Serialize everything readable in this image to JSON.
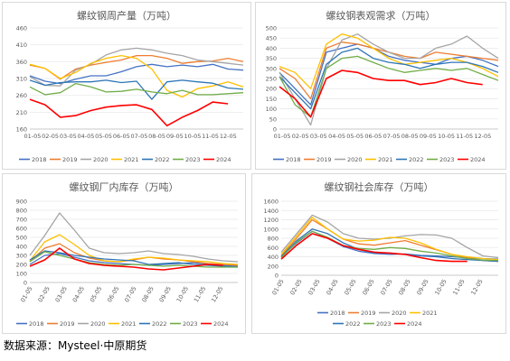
{
  "source_text": "数据来源：Mysteel·中原期货",
  "colors": {
    "2018": "#4472c4",
    "2019": "#ed7d31",
    "2020": "#a5a5a5",
    "2021": "#ffc000",
    "2022": "#2e75b6",
    "2023": "#70ad47",
    "2024": "#ff0000"
  },
  "chart_data": [
    {
      "type": "line",
      "title": "螺纹钢周产量（万吨）",
      "x_labels": [
        "01-05",
        "02-05",
        "03-05",
        "04-05",
        "05-05",
        "06-05",
        "07-05",
        "08-05",
        "09-05",
        "10-05",
        "11-05",
        "12-05"
      ],
      "y_ticks": [
        160,
        210,
        260,
        310,
        360,
        410,
        460
      ],
      "ylim": [
        160,
        460
      ],
      "legend_position": "bottom",
      "series": [
        {
          "name": "2018",
          "values": [
            318,
            302,
            295,
            308,
            318,
            318,
            330,
            345,
            352,
            345,
            350,
            345,
            352,
            338,
            335
          ]
        },
        {
          "name": "2019",
          "values": [
            350,
            340,
            308,
            338,
            350,
            358,
            365,
            378,
            378,
            370,
            355,
            360,
            362,
            370,
            360
          ]
        },
        {
          "name": "2020",
          "values": [
            315,
            290,
            288,
            335,
            352,
            380,
            395,
            400,
            395,
            385,
            378,
            365,
            360,
            355,
            350
          ]
        },
        {
          "name": "2021",
          "values": [
            352,
            340,
            310,
            328,
            355,
            370,
            378,
            370,
            338,
            275,
            255,
            280,
            288,
            300,
            285
          ]
        },
        {
          "name": "2022",
          "values": [
            305,
            290,
            298,
            300,
            300,
            305,
            298,
            302,
            248,
            300,
            305,
            300,
            296,
            282,
            278
          ]
        },
        {
          "name": "2023",
          "values": [
            285,
            262,
            268,
            295,
            285,
            270,
            272,
            278,
            270,
            265,
            275,
            262,
            262,
            265,
            268
          ]
        },
        {
          "name": "2024",
          "values": [
            248,
            232,
            195,
            200,
            215,
            225,
            230,
            232,
            218,
            170,
            195,
            215,
            240,
            235,
            null
          ]
        }
      ]
    },
    {
      "type": "line",
      "title": "螺纹钢表观需求（万吨）",
      "x_labels": [
        "01-05",
        "02-05",
        "03-05",
        "04-05",
        "05-05",
        "06-05",
        "07-05",
        "08-05",
        "09-05",
        "10-05",
        "11-05",
        "12-05"
      ],
      "y_ticks": [
        0,
        50,
        100,
        150,
        200,
        250,
        300,
        350,
        400,
        450,
        500
      ],
      "ylim": [
        0,
        500
      ],
      "legend_position": "bottom",
      "series": [
        {
          "name": "2018",
          "values": [
            280,
            200,
            120,
            380,
            400,
            420,
            400,
            360,
            340,
            330,
            320,
            350,
            360,
            340,
            310
          ]
        },
        {
          "name": "2019",
          "values": [
            300,
            250,
            150,
            400,
            430,
            420,
            400,
            380,
            360,
            350,
            380,
            370,
            360,
            350,
            340
          ]
        },
        {
          "name": "2020",
          "values": [
            280,
            150,
            20,
            300,
            440,
            470,
            420,
            380,
            350,
            350,
            400,
            420,
            460,
            400,
            350
          ]
        },
        {
          "name": "2021",
          "values": [
            310,
            280,
            200,
            420,
            470,
            450,
            400,
            350,
            320,
            330,
            340,
            350,
            330,
            300,
            260
          ]
        },
        {
          "name": "2022",
          "values": [
            260,
            180,
            100,
            320,
            380,
            400,
            350,
            330,
            320,
            300,
            320,
            330,
            330,
            310,
            280
          ]
        },
        {
          "name": "2023",
          "values": [
            260,
            120,
            60,
            300,
            350,
            360,
            330,
            300,
            280,
            290,
            300,
            290,
            300,
            270,
            240
          ]
        },
        {
          "name": "2024",
          "values": [
            210,
            150,
            60,
            250,
            290,
            280,
            250,
            240,
            240,
            220,
            230,
            250,
            230,
            220,
            null
          ]
        }
      ]
    },
    {
      "type": "line",
      "title": "螺纹钢厂内库存（万吨）",
      "x_labels": [
        "01-05",
        "02-05",
        "03-05",
        "04-05",
        "05-05",
        "06-05",
        "07-05",
        "08-05",
        "09-05",
        "10-05",
        "11-05",
        "12-05"
      ],
      "y_ticks": [
        0,
        100,
        200,
        300,
        400,
        500,
        600,
        700,
        800,
        900
      ],
      "ylim": [
        0,
        900
      ],
      "legend_position": "bottom",
      "series": [
        {
          "name": "2018",
          "values": [
            200,
            300,
            320,
            280,
            240,
            220,
            210,
            200,
            190,
            200,
            210,
            220,
            200,
            190,
            180
          ]
        },
        {
          "name": "2019",
          "values": [
            230,
            380,
            430,
            330,
            270,
            240,
            230,
            250,
            280,
            260,
            250,
            230,
            210,
            200,
            190
          ]
        },
        {
          "name": "2020",
          "values": [
            300,
            520,
            770,
            580,
            380,
            330,
            320,
            330,
            350,
            320,
            310,
            290,
            260,
            240,
            230
          ]
        },
        {
          "name": "2021",
          "values": [
            240,
            450,
            530,
            420,
            300,
            240,
            230,
            260,
            280,
            270,
            250,
            240,
            230,
            210,
            200
          ]
        },
        {
          "name": "2022",
          "values": [
            250,
            350,
            330,
            300,
            280,
            260,
            250,
            240,
            200,
            210,
            220,
            200,
            190,
            180,
            170
          ]
        },
        {
          "name": "2023",
          "values": [
            230,
            340,
            300,
            260,
            220,
            200,
            190,
            200,
            190,
            180,
            190,
            180,
            170,
            170,
            170
          ]
        },
        {
          "name": "2024",
          "values": [
            180,
            250,
            380,
            260,
            210,
            190,
            180,
            170,
            150,
            140,
            160,
            180,
            200,
            190,
            null
          ]
        }
      ]
    },
    {
      "type": "line",
      "title": "螺纹钢社会库存（万吨）",
      "x_labels": [
        "01-05",
        "02-05",
        "03-05",
        "04-05",
        "05-05",
        "06-05",
        "07-05",
        "08-05",
        "09-05",
        "10-05",
        "11-05",
        "12-05"
      ],
      "y_ticks": [
        0,
        200,
        400,
        600,
        800,
        1000,
        1200,
        1400,
        1600
      ],
      "ylim": [
        0,
        1600
      ],
      "legend_position": "bottom",
      "series": [
        {
          "name": "2018",
          "values": [
            400,
            700,
            950,
            800,
            620,
            520,
            470,
            450,
            460,
            430,
            420,
            400,
            380,
            360,
            350
          ]
        },
        {
          "name": "2019",
          "values": [
            420,
            800,
            1200,
            1000,
            780,
            680,
            650,
            700,
            750,
            650,
            550,
            450,
            380,
            320,
            300
          ]
        },
        {
          "name": "2020",
          "values": [
            500,
            900,
            1300,
            1150,
            900,
            800,
            780,
            800,
            850,
            880,
            870,
            800,
            600,
            420,
            380
          ]
        },
        {
          "name": "2021",
          "values": [
            450,
            850,
            1250,
            1000,
            780,
            740,
            760,
            820,
            800,
            700,
            560,
            450,
            400,
            360,
            340
          ]
        },
        {
          "name": "2022",
          "values": [
            400,
            750,
            1000,
            900,
            700,
            560,
            480,
            480,
            450,
            420,
            400,
            360,
            340,
            320,
            300
          ]
        },
        {
          "name": "2023",
          "values": [
            380,
            720,
            950,
            820,
            640,
            580,
            560,
            600,
            580,
            520,
            480,
            420,
            360,
            330,
            320
          ]
        },
        {
          "name": "2024",
          "values": [
            350,
            650,
            900,
            800,
            640,
            560,
            500,
            480,
            450,
            380,
            320,
            300,
            300,
            null,
            null
          ]
        }
      ]
    }
  ]
}
